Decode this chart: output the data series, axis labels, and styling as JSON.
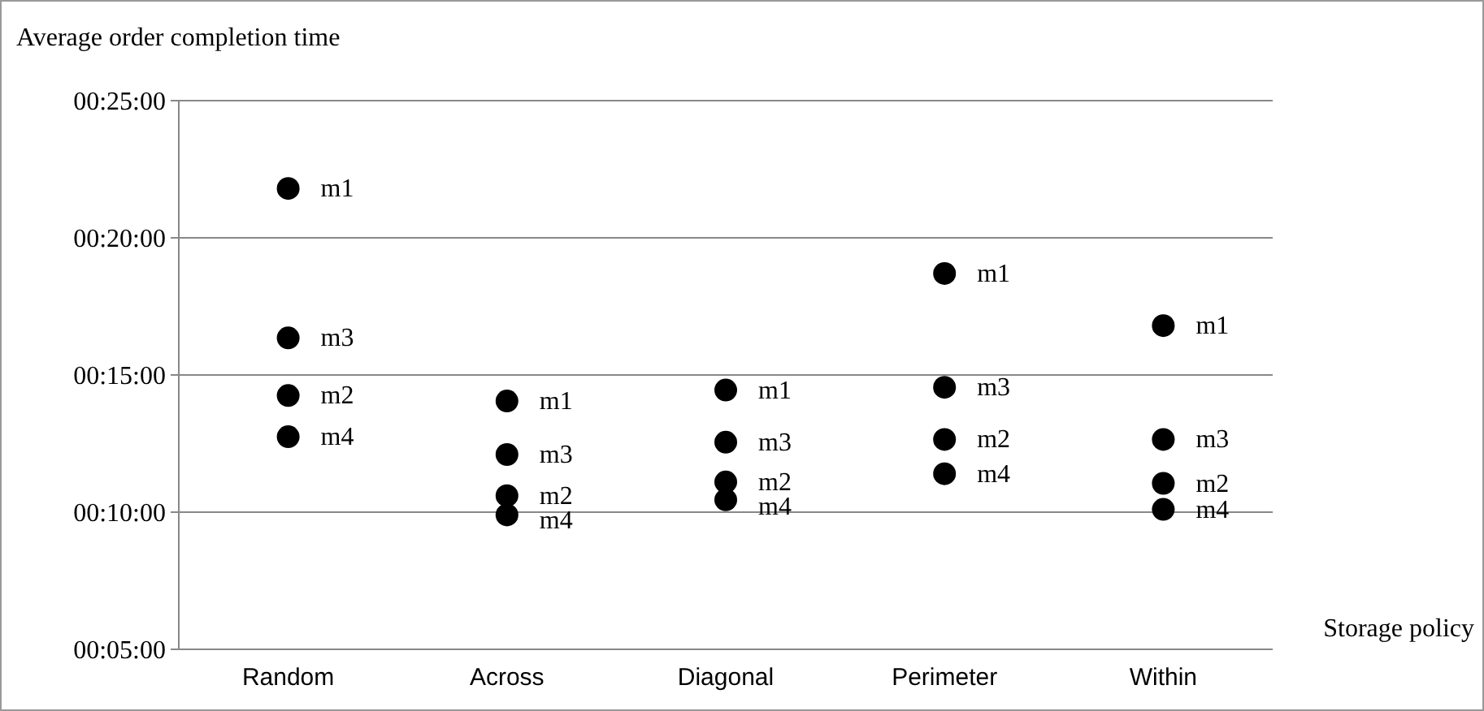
{
  "chart_data": {
    "type": "scatter",
    "ylabel": "Average order completion time",
    "xlabel": "Storage policy",
    "categories": [
      "Random",
      "Across",
      "Diagonal",
      "Perimeter",
      "Within"
    ],
    "series": [
      {
        "name": "m1",
        "color": "#000000",
        "values": [
          21.8,
          14.05,
          14.45,
          18.7,
          16.8
        ]
      },
      {
        "name": "m3",
        "color": "#000000",
        "values": [
          16.35,
          12.1,
          12.55,
          14.55,
          12.65
        ]
      },
      {
        "name": "m2",
        "color": "#000000",
        "values": [
          14.25,
          10.6,
          11.1,
          12.65,
          11.05
        ]
      },
      {
        "name": "m4",
        "color": "#000000",
        "values": [
          12.75,
          9.9,
          10.45,
          11.4,
          10.1
        ]
      }
    ],
    "ylim": [
      5,
      25
    ],
    "yticks": [
      {
        "value": 5,
        "label": "00:05:00"
      },
      {
        "value": 10,
        "label": "00:10:00"
      },
      {
        "value": 15,
        "label": "00:15:00"
      },
      {
        "value": 20,
        "label": "00:20:00"
      },
      {
        "value": 25,
        "label": "00:25:00"
      }
    ],
    "grid": "y",
    "marker": "circle"
  }
}
